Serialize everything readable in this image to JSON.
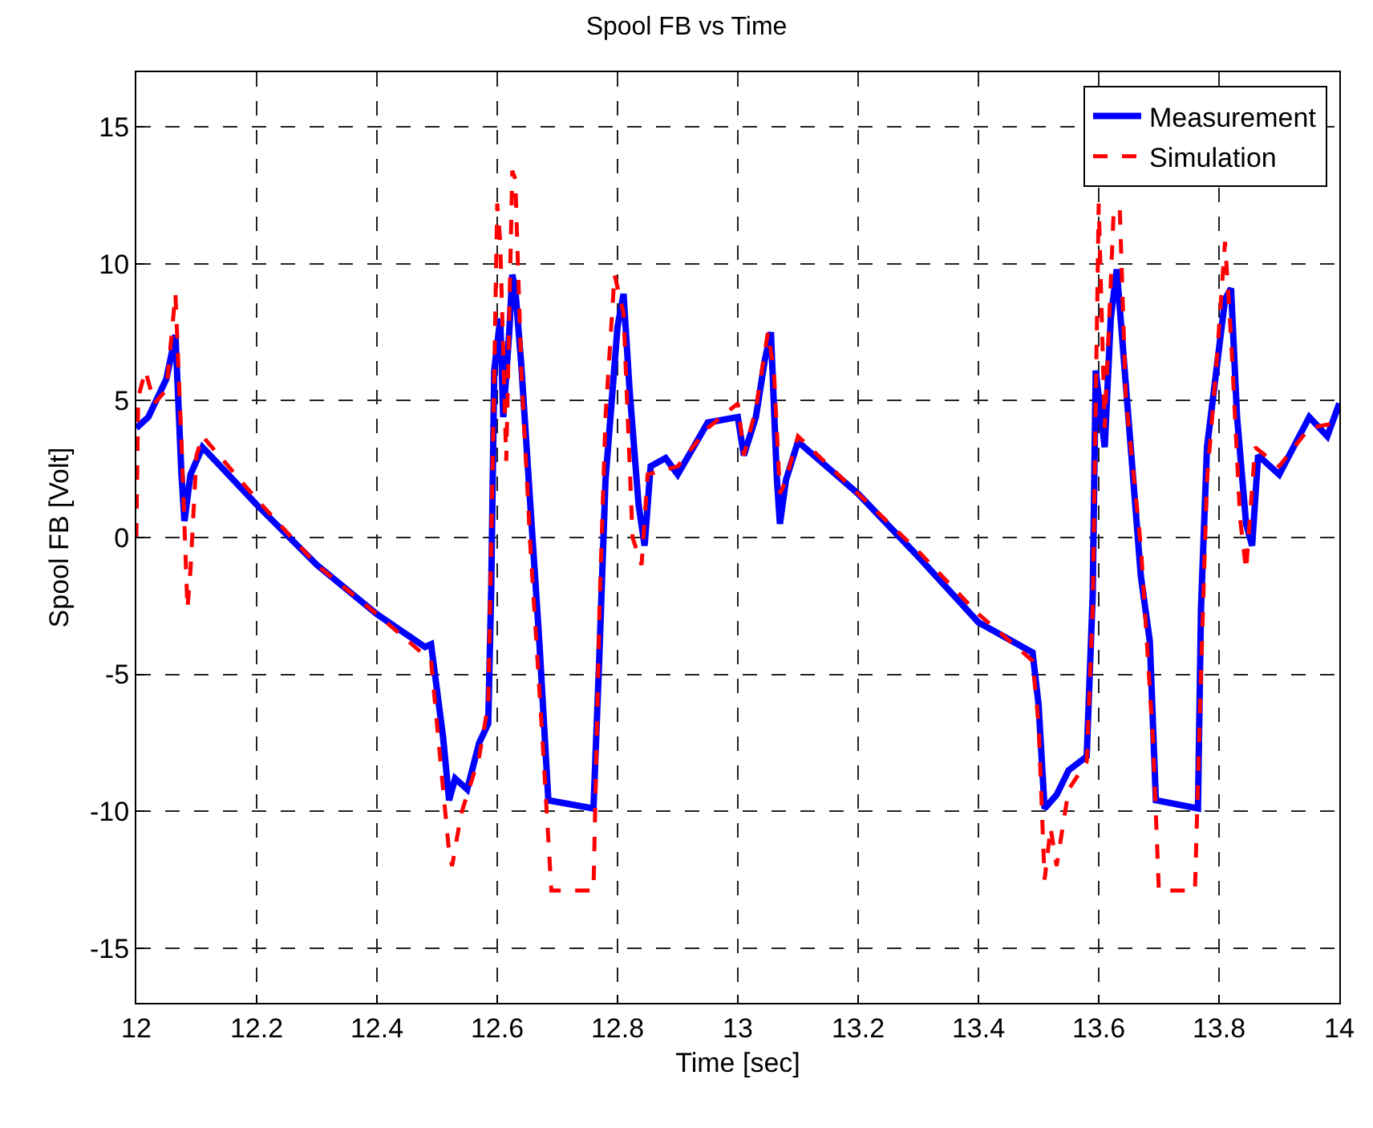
{
  "chart_data": {
    "type": "line",
    "title": "Spool FB vs Time",
    "xlabel": "Time [sec]",
    "ylabel": "Spool FB [Volt]",
    "xlim": [
      12,
      14
    ],
    "xticks": [
      12,
      12.2,
      12.4,
      12.6,
      12.8,
      13,
      13.2,
      13.4,
      13.6,
      13.8,
      14
    ],
    "ylim": [
      -17,
      17
    ],
    "yticks": [
      -15,
      -10,
      -5,
      0,
      5,
      10,
      15
    ],
    "grid": true,
    "legend": "top right",
    "marker": "none",
    "series": [
      {
        "name": "Measurement",
        "color": "#0000ff",
        "line_style": "solid",
        "x": [
          12.0,
          12.02,
          12.05,
          12.065,
          12.075,
          12.08,
          12.09,
          12.11,
          12.2,
          12.3,
          12.4,
          12.48,
          12.49,
          12.51,
          12.52,
          12.53,
          12.55,
          12.57,
          12.585,
          12.59,
          12.595,
          12.605,
          12.61,
          12.62,
          12.625,
          12.63,
          12.64,
          12.655,
          12.67,
          12.685,
          12.76,
          12.77,
          12.78,
          12.79,
          12.8,
          12.81,
          12.82,
          12.835,
          12.845,
          12.855,
          12.88,
          12.9,
          12.95,
          13.0,
          13.01,
          13.03,
          13.045,
          13.055,
          13.065,
          13.07,
          13.08,
          13.1,
          13.2,
          13.3,
          13.4,
          13.49,
          13.5,
          13.51,
          13.53,
          13.55,
          13.58,
          13.59,
          13.595,
          13.61,
          13.62,
          13.63,
          13.645,
          13.67,
          13.685,
          13.695,
          13.765,
          13.77,
          13.78,
          13.79,
          13.81,
          13.82,
          13.83,
          13.845,
          13.855,
          13.865,
          13.9,
          13.95,
          13.98,
          14.0
        ],
        "values": [
          4.0,
          4.4,
          5.8,
          7.4,
          2.3,
          0.6,
          2.3,
          3.3,
          1.2,
          -1.0,
          -2.8,
          -4.0,
          -3.9,
          -7.3,
          -9.6,
          -8.8,
          -9.2,
          -7.5,
          -6.8,
          -1.9,
          6.1,
          8.0,
          4.4,
          7.5,
          9.6,
          9.1,
          6.3,
          1.2,
          -3.8,
          -9.6,
          -9.9,
          -4.2,
          2.1,
          4.9,
          7.7,
          8.9,
          5.4,
          1.2,
          -0.3,
          2.6,
          2.9,
          2.3,
          4.2,
          4.4,
          3.0,
          4.4,
          6.5,
          7.5,
          2.1,
          0.5,
          2.1,
          3.5,
          1.6,
          -0.7,
          -3.1,
          -4.2,
          -6.1,
          -9.9,
          -9.4,
          -8.5,
          -8.0,
          -2.1,
          6.1,
          3.3,
          8.0,
          9.8,
          5.6,
          -1.4,
          -3.8,
          -9.6,
          -9.9,
          -2.6,
          3.3,
          5.1,
          8.7,
          9.1,
          4.4,
          0.5,
          -0.3,
          3.0,
          2.3,
          4.4,
          3.7,
          4.9
        ]
      },
      {
        "name": "Simulation",
        "color": "#ff0000",
        "line_style": "dashed",
        "x": [
          12.0,
          12.003,
          12.015,
          12.03,
          12.05,
          12.065,
          12.075,
          12.085,
          12.09,
          12.1,
          12.11,
          12.2,
          12.3,
          12.4,
          12.49,
          12.51,
          12.52,
          12.525,
          12.54,
          12.57,
          12.585,
          12.59,
          12.6,
          12.605,
          12.615,
          12.625,
          12.63,
          12.64,
          12.655,
          12.675,
          12.69,
          12.76,
          12.77,
          12.78,
          12.795,
          12.81,
          12.825,
          12.84,
          12.85,
          12.9,
          12.95,
          13.0,
          13.01,
          13.03,
          13.05,
          13.06,
          13.07,
          13.08,
          13.1,
          13.2,
          13.3,
          13.4,
          13.49,
          13.5,
          13.51,
          13.52,
          13.53,
          13.55,
          13.58,
          13.59,
          13.6,
          13.61,
          13.625,
          13.635,
          13.645,
          13.67,
          13.69,
          13.7,
          13.76,
          13.77,
          13.78,
          13.795,
          13.81,
          13.82,
          13.835,
          13.845,
          13.86,
          13.9,
          13.95,
          14.0
        ],
        "values": [
          0,
          5.1,
          6.1,
          4.9,
          5.4,
          8.9,
          3.5,
          -2.6,
          -1.2,
          3.0,
          3.7,
          1.4,
          -1.0,
          -2.8,
          -4.5,
          -9.2,
          -11.5,
          -12.0,
          -10.1,
          -8.0,
          -6.1,
          -0.3,
          12.2,
          10.8,
          2.8,
          13.4,
          13.1,
          6.1,
          -0.3,
          -7.3,
          -12.9,
          -12.9,
          -2.6,
          4.4,
          9.6,
          8.2,
          0,
          -1.0,
          2.3,
          2.6,
          4.0,
          4.9,
          3.0,
          4.7,
          7.5,
          6.1,
          1.6,
          2.1,
          3.7,
          1.6,
          -0.5,
          -2.8,
          -4.5,
          -6.8,
          -12.5,
          -10.6,
          -12.0,
          -9.2,
          -8.2,
          -2.6,
          12.2,
          4.0,
          12.0,
          12.0,
          5.1,
          -0.3,
          -7.3,
          -12.9,
          -12.9,
          -5.0,
          2.1,
          6.1,
          10.8,
          7.3,
          0.7,
          -1.2,
          3.3,
          2.6,
          4.0,
          4.2
        ]
      }
    ]
  }
}
